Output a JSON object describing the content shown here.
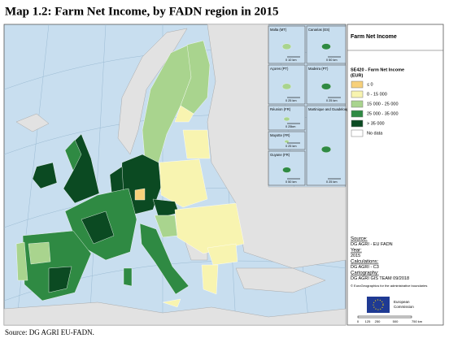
{
  "title": "Map 1.2: Farm Net Income, by FADN region in 2015",
  "insets": [
    {
      "label": "Malta (MT)",
      "scale": "0    10 km"
    },
    {
      "label": "Canarias (ES)",
      "scale": "0 50 km"
    },
    {
      "label": "Açores (PT)",
      "scale": "0 25 km"
    },
    {
      "label": "Madeira (PT)",
      "scale": "0 25 km"
    },
    {
      "label": "Réunion (FR)",
      "scale": "0 25km"
    },
    {
      "label": "Martinique and Guadeloupe (FR)",
      "scale": "0 25 km"
    },
    {
      "label": "Mayotte (FR)",
      "scale": "0 25 km"
    },
    {
      "label": "Guyane (FR)",
      "scale": "0 50 km"
    }
  ],
  "legend": {
    "heading": "Farm Net Income",
    "title": "SE420 - Farm Net Income",
    "unit": "(EUR)",
    "classes": [
      {
        "label": "≤ 0",
        "color": "#f7d07a"
      },
      {
        "label": "0 - 15 000",
        "color": "#f8f4b0"
      },
      {
        "label": "15 000 - 25 000",
        "color": "#a9d48e"
      },
      {
        "label": "25 000 - 35 000",
        "color": "#2f8a43"
      },
      {
        "label": "> 35 000",
        "color": "#0b4a22"
      },
      {
        "label": "No data",
        "color": "#ffffff"
      }
    ]
  },
  "credits": [
    {
      "heading": "Source:",
      "text": "DG AGRI - EU FADN"
    },
    {
      "heading": "Year:",
      "text": "2015"
    },
    {
      "heading": "Calculations:",
      "text": "DG AGRI - C3"
    },
    {
      "heading": "Cartography:",
      "text": "DG AGRI GIS TEAM 09/2018"
    }
  ],
  "copyright": "© EuroGeographics for the administrative boundaries",
  "logo_text": [
    "European",
    "Commission"
  ],
  "scale_bar": [
    "0",
    "125",
    "250",
    "500",
    "750 km"
  ],
  "footer": "Source: DG AGRI EU-FADN."
}
